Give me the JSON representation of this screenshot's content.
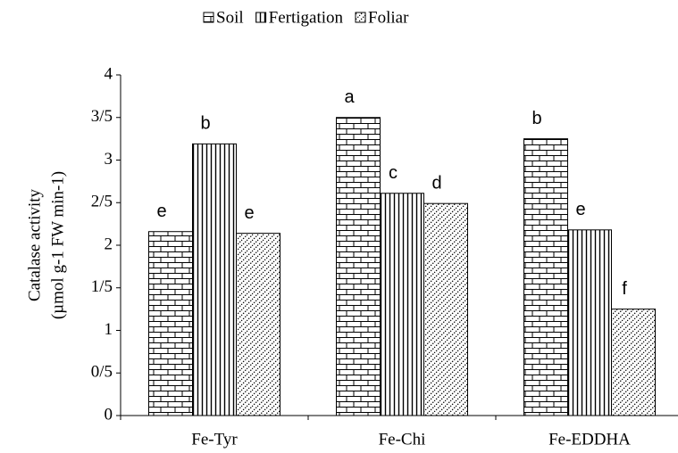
{
  "chart_data": {
    "type": "bar",
    "ylabel": [
      "Catalase activity",
      "(µmol g-1 FW min-1)"
    ],
    "categories": [
      "Fe-Tyr",
      "Fe-Chi",
      "Fe-EDDHA"
    ],
    "series": [
      {
        "name": "Soil",
        "color": "#000000",
        "pattern": "brick",
        "values": [
          2.16,
          3.5,
          3.25
        ],
        "letters": [
          "e",
          "a",
          "b"
        ]
      },
      {
        "name": "Fertigation",
        "color": "#000000",
        "pattern": "vertical",
        "values": [
          3.19,
          2.61,
          2.18
        ],
        "letters": [
          "b",
          "c",
          "e"
        ]
      },
      {
        "name": "Foliar",
        "color": "#000000",
        "pattern": "dots",
        "values": [
          2.14,
          2.49,
          1.25
        ],
        "letters": [
          "e",
          "d",
          "f"
        ]
      }
    ],
    "ylim": [
      0,
      4
    ],
    "yticks": [
      0,
      {
        "value": 0.5,
        "label": "0/5"
      },
      1,
      {
        "value": 1.5,
        "label": "1/5"
      },
      2,
      {
        "value": 2.5,
        "label": "2/5"
      },
      3,
      {
        "value": 3.5,
        "label": "3/5"
      },
      4
    ],
    "legend": "top"
  }
}
